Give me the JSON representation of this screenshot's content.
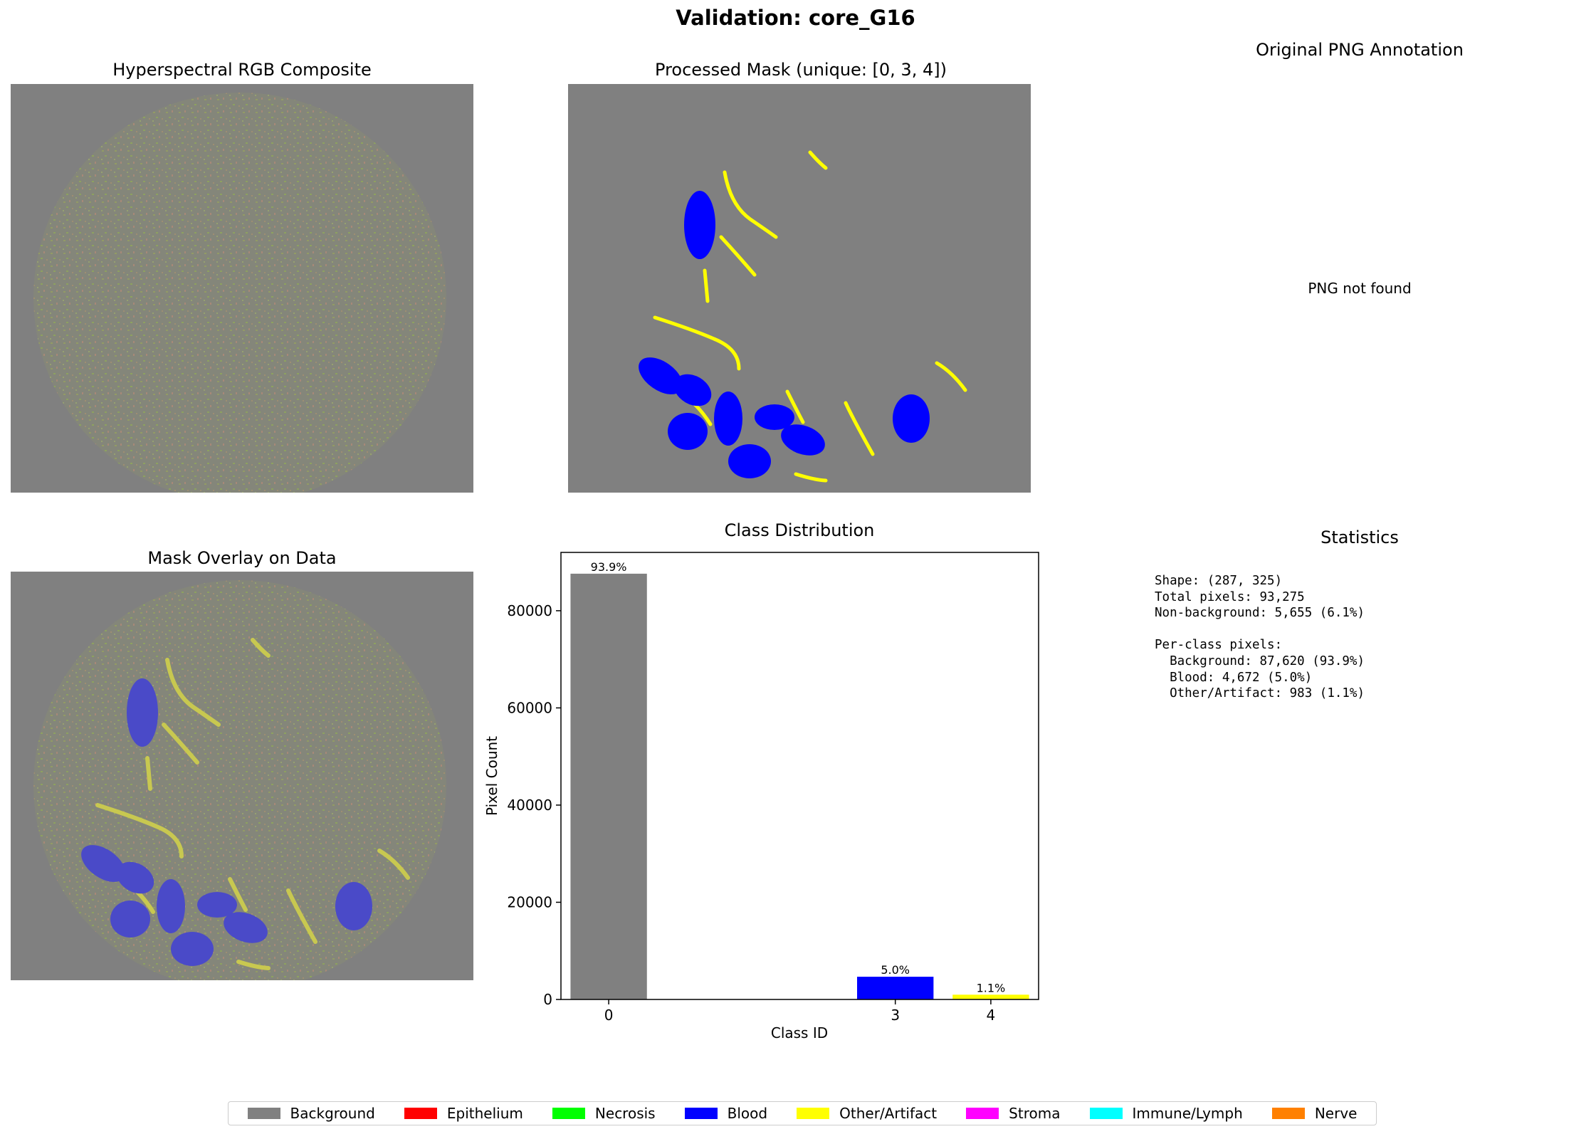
{
  "figure": {
    "suptitle": "Validation: core_G16"
  },
  "panels": {
    "rgb_title": "Hyperspectral RGB Composite",
    "mask_title": "Processed Mask (unique: [0, 3, 4])",
    "png_title": "Original PNG Annotation",
    "png_missing_text": "PNG not found",
    "overlay_title": "Mask Overlay on Data",
    "stats_title": "Statistics"
  },
  "statistics": {
    "text": "Shape: (287, 325)\nTotal pixels: 93,275\nNon-background: 5,655 (6.1%)\n\nPer-class pixels:\n  Background: 87,620 (93.9%)\n  Blood: 4,672 (5.0%)\n  Other/Artifact: 983 (1.1%)"
  },
  "colors": {
    "background": "#808080",
    "blood": "#0000ff",
    "artifact": "#ffff00",
    "overlay_blood": "#4a4ac8",
    "overlay_artifact": "#c8c850"
  },
  "chart_data": {
    "type": "bar",
    "title": "Class Distribution",
    "xlabel": "Class ID",
    "ylabel": "Pixel Count",
    "xlim": [
      -0.5,
      4.5
    ],
    "ylim": [
      0,
      92000
    ],
    "yticks": [
      0,
      20000,
      40000,
      60000,
      80000
    ],
    "ytick_labels": [
      "0",
      "20000",
      "40000",
      "60000",
      "80000"
    ],
    "xticks": [
      0,
      3,
      4
    ],
    "xtick_labels": [
      "0",
      "3",
      "4"
    ],
    "bars": [
      {
        "x": 0,
        "value": 87620,
        "label": "93.9%",
        "color": "#808080"
      },
      {
        "x": 3,
        "value": 4672,
        "label": "5.0%",
        "color": "#0000ff"
      },
      {
        "x": 4,
        "value": 983,
        "label": "1.1%",
        "color": "#ffff00"
      }
    ],
    "bar_width": 0.8
  },
  "legend": {
    "items": [
      {
        "label": "Background",
        "color": "#808080"
      },
      {
        "label": "Epithelium",
        "color": "#ff0000"
      },
      {
        "label": "Necrosis",
        "color": "#00ff00"
      },
      {
        "label": "Blood",
        "color": "#0000ff"
      },
      {
        "label": "Other/Artifact",
        "color": "#ffff00"
      },
      {
        "label": "Stroma",
        "color": "#ff00ff"
      },
      {
        "label": "Immune/Lymph",
        "color": "#00ffff"
      },
      {
        "label": "Nerve",
        "color": "#ff8000"
      }
    ]
  }
}
